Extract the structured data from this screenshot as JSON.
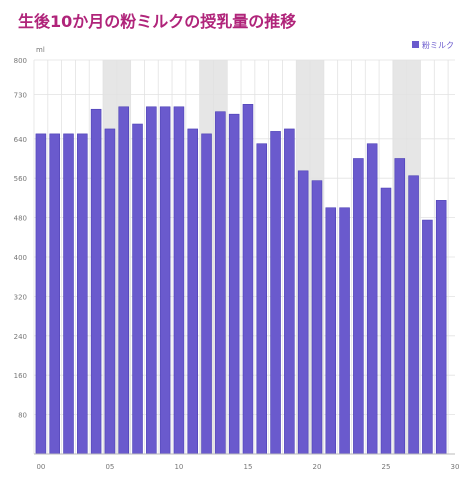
{
  "title": "生後10か月の粉ミルクの授乳量の推移",
  "colors": {
    "title": "#b0247a",
    "bar": "#6a5acd",
    "bar_stroke": "#4b3fb5",
    "shade": "#e6e6e6",
    "grid": "#e2e2e2",
    "axis_text": "#777777"
  },
  "chart_data": {
    "type": "bar",
    "ylabel": "ml",
    "xlabel": "",
    "ylim": [
      0,
      800
    ],
    "yticks": [
      80,
      160,
      240,
      320,
      400,
      480,
      560,
      640,
      730,
      800
    ],
    "xlim": [
      -0.5,
      30
    ],
    "xticks": [
      {
        "value": 0,
        "label": "00"
      },
      {
        "value": 5,
        "label": "05"
      },
      {
        "value": 10,
        "label": "10"
      },
      {
        "value": 15,
        "label": "15"
      },
      {
        "value": 20,
        "label": "20"
      },
      {
        "value": 25,
        "label": "25"
      },
      {
        "value": 30,
        "label": "30"
      }
    ],
    "legend_position": "top-right",
    "shaded_bands": [
      [
        4.5,
        6.5
      ],
      [
        11.5,
        13.5
      ],
      [
        18.5,
        20.5
      ],
      [
        25.5,
        27.5
      ]
    ],
    "series": [
      {
        "name": "粉ミルク",
        "x": [
          0,
          1,
          2,
          3,
          4,
          5,
          6,
          7,
          8,
          9,
          10,
          11,
          12,
          13,
          14,
          15,
          16,
          17,
          18,
          19,
          20,
          21,
          22,
          23,
          24,
          25,
          26,
          27,
          28,
          29
        ],
        "values": [
          650,
          650,
          650,
          650,
          700,
          660,
          705,
          670,
          705,
          705,
          705,
          660,
          650,
          695,
          690,
          710,
          630,
          655,
          660,
          575,
          555,
          500,
          500,
          600,
          630,
          540,
          600,
          565,
          475,
          515
        ]
      }
    ]
  }
}
